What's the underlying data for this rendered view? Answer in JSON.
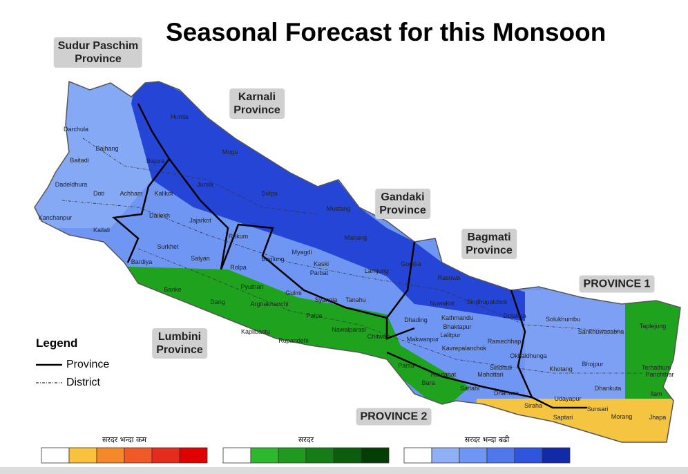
{
  "title": "Seasonal Forecast for this Monsoon",
  "provinces": [
    [
      "Sudur Paschim",
      "Province"
    ],
    [
      "Karnali",
      "Province"
    ],
    [
      "Gandaki",
      "Province"
    ],
    [
      "Bagmati",
      "Province"
    ],
    [
      "PROVINCE 1"
    ],
    [
      "Lumbini",
      "Province"
    ],
    [
      "PROVINCE 2"
    ]
  ],
  "districts": [
    "Humla",
    "Darchula",
    "Bajhang",
    "Mugu",
    "Baitadi",
    "Bajura",
    "Dadeldhura",
    "Jumla",
    "Doti",
    "Achham",
    "Kalikot",
    "Dolpa",
    "Mustang",
    "Kanchanpur",
    "Kailali",
    "Dailekh",
    "Jajarkot",
    "Rukum",
    "Manang",
    "Surkhet",
    "Salyan",
    "Myagdi",
    "Kaski",
    "Gorkha",
    "Bardiya",
    "Baglung",
    "Lamjung",
    "Rolpa",
    "Parbat",
    "Rasuwa",
    "Banke",
    "Pyuthan",
    "Gulmi",
    "Syangja",
    "Tanahu",
    "Nuwakot",
    "Sindhupalchok",
    "Dang",
    "Arghakhanchi",
    "Dolakha",
    "Solukhumbu",
    "Taplejung",
    "Palpa",
    "Dhading",
    "Kathmandu",
    "Bhaktapur",
    "Lalitpur",
    "Kapilbastu",
    "Nawalparasi",
    "Sankhuwasabha",
    "Chitwan",
    "Rupandehi",
    "Makwanpur",
    "Ramechhap",
    "Kavrepalanchok",
    "Okhaldhunga",
    "Terhathum",
    "Bhojpur",
    "Khotang",
    "Panchthar",
    "Parsa",
    "Sindhuli",
    "Rautahat",
    "Mahottari",
    "Bara",
    "Sarlahi",
    "Dhankuta",
    "Ilam",
    "Dhanusa",
    "Siraha",
    "Udayapur",
    "Sunsari",
    "Saptari",
    "Morang",
    "Jhapa"
  ],
  "legend": {
    "title": "Legend",
    "items": [
      "Province",
      "District"
    ]
  },
  "color_scale": {
    "labels": [
      "सरदर भन्दा कम",
      "सरदर",
      "सरदर भन्दा बढी"
    ]
  }
}
